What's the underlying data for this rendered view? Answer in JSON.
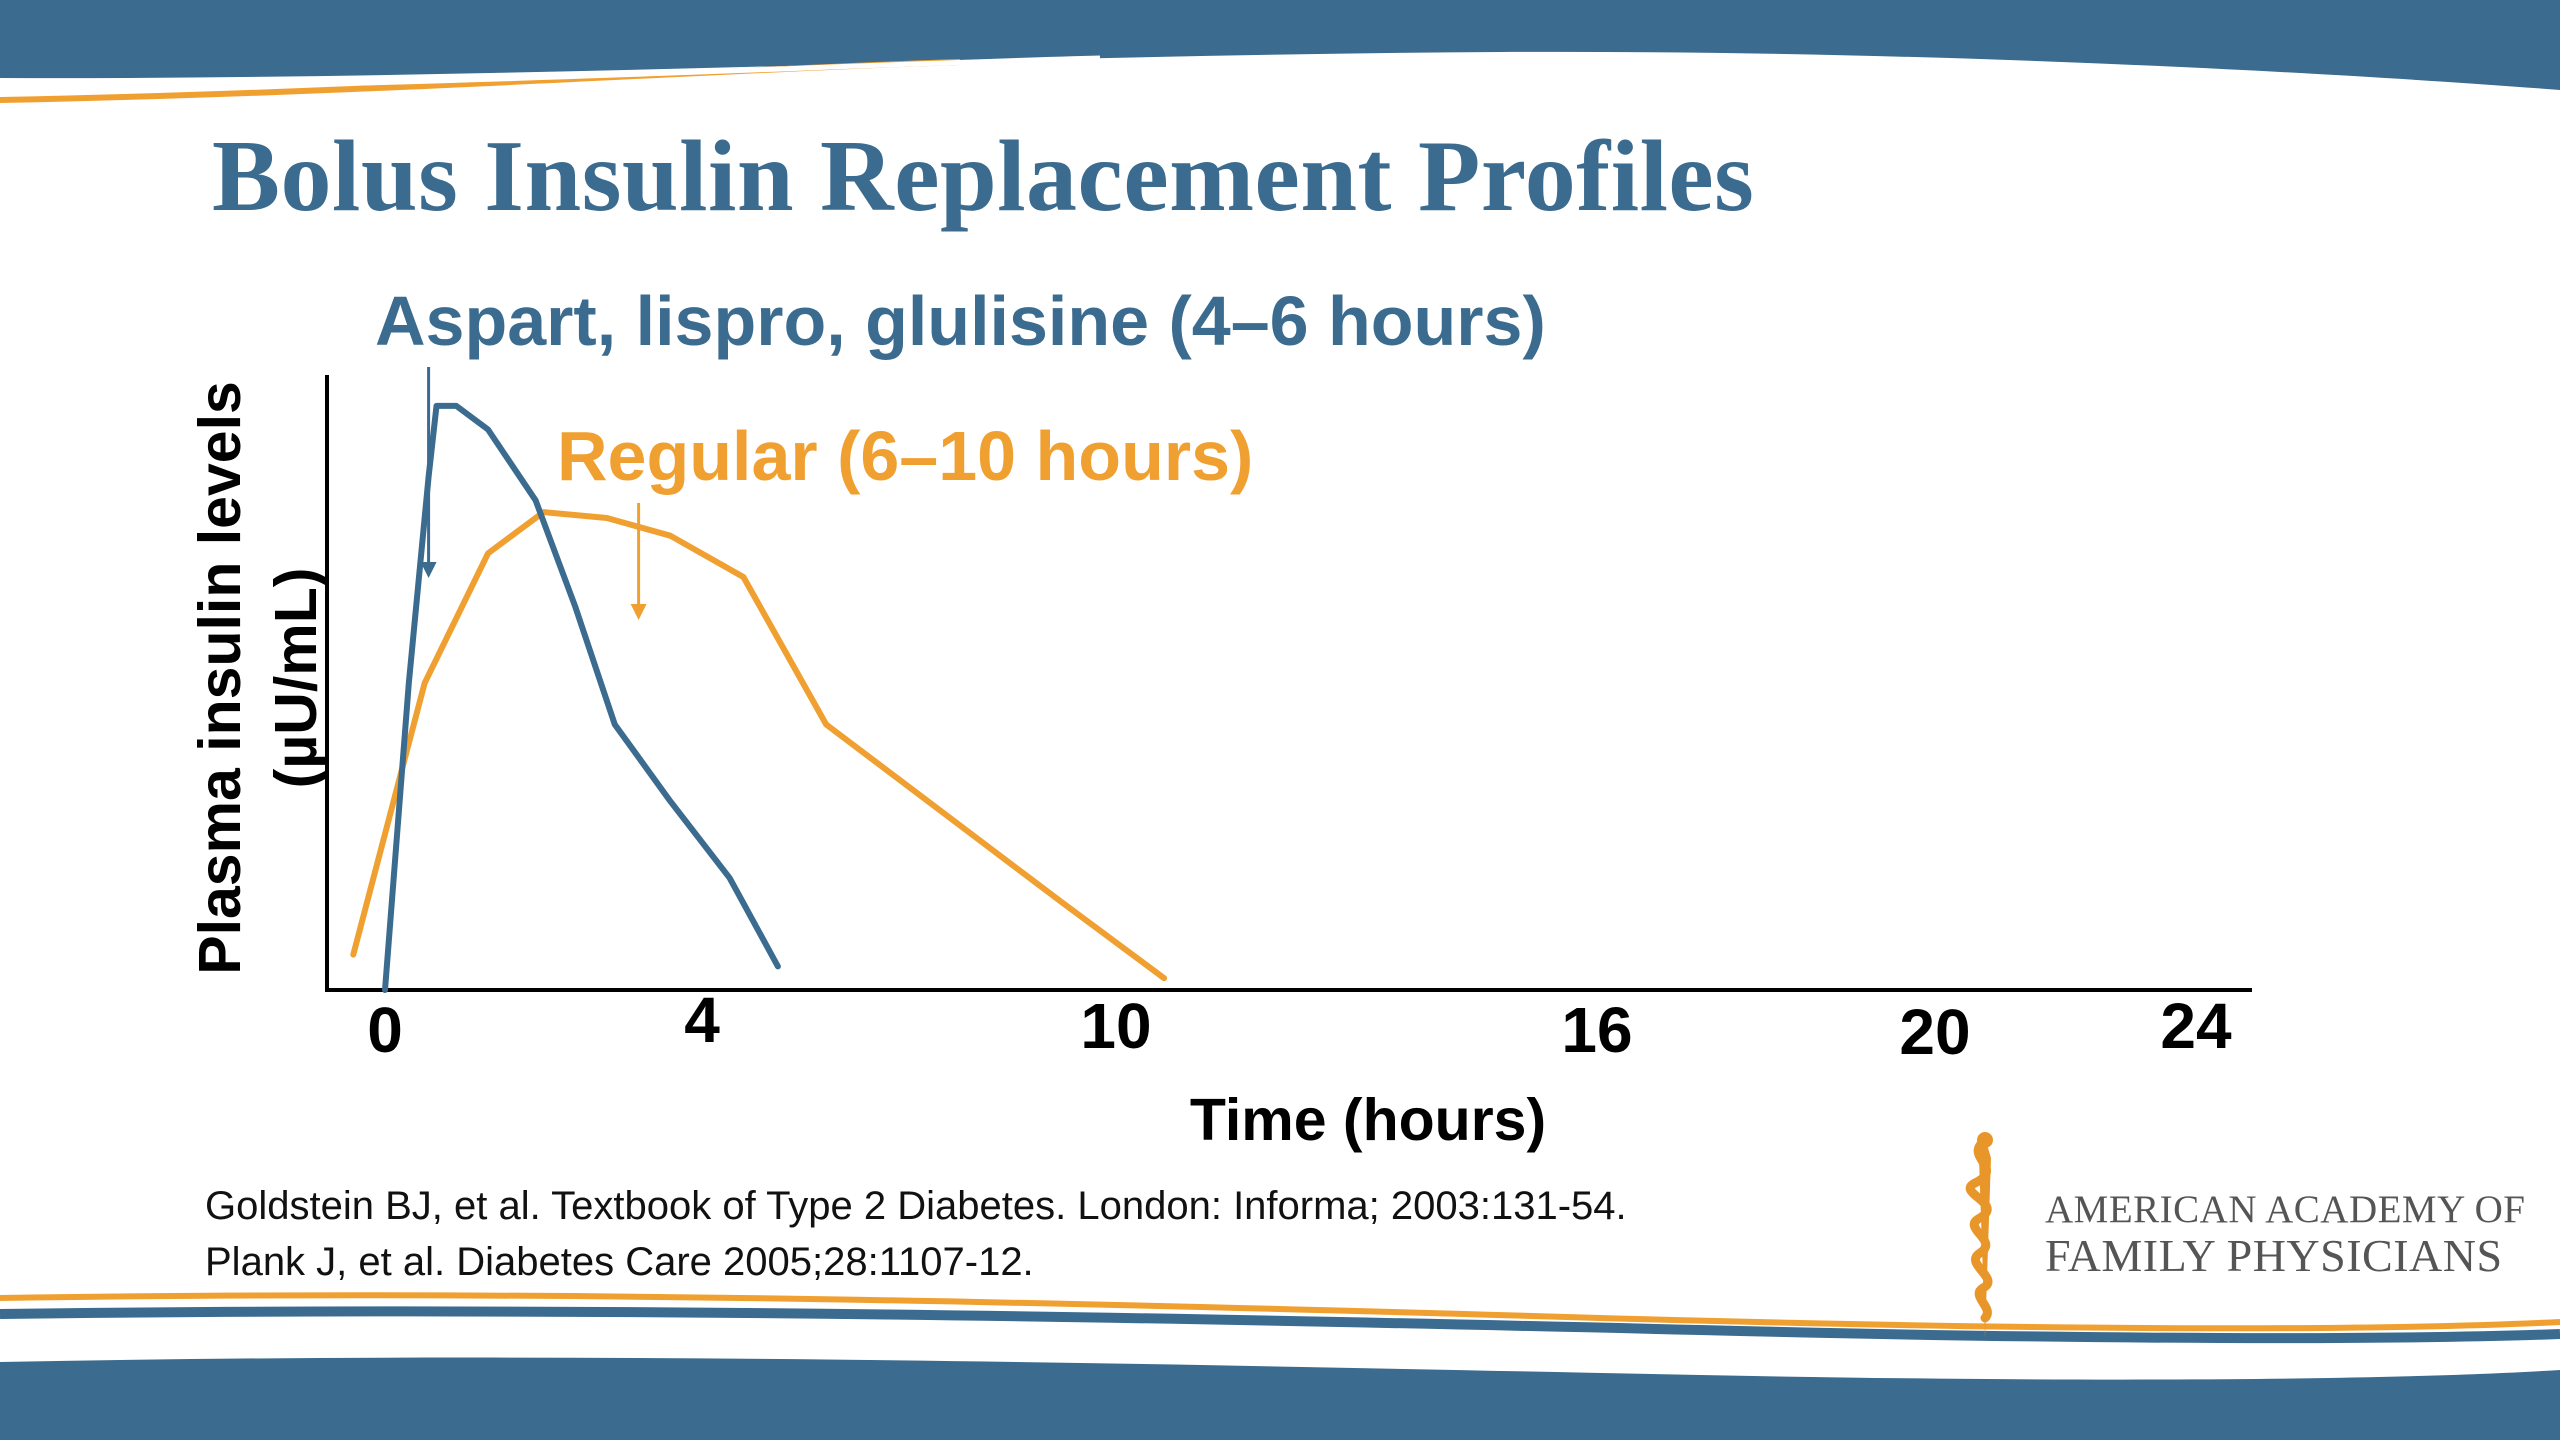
{
  "slide": {
    "title": "Bolus Insulin Replacement Profiles",
    "citations": [
      "Goldstein BJ, et al. Textbook of Type 2 Diabetes. London: Informa; 2003:131-54.",
      "Plank J, et al. Diabetes Care 2005;28:1107-12."
    ],
    "logo": {
      "line1": "AMERICAN ACADEMY OF",
      "line2": "FAMILY PHYSICIANS",
      "icon": "caduceus-icon"
    },
    "colors": {
      "band": "#3b6b8e",
      "accent": "#f0a030",
      "title": "#3b6b8e"
    }
  },
  "chart_data": {
    "type": "line",
    "title": "",
    "xlabel": "Time (hours)",
    "ylabel": "Plasma insulin levels",
    "ylabel_units": "(µU/mL)",
    "xlim": [
      0,
      24
    ],
    "ylim": [
      0,
      1
    ],
    "x_ticks": [
      0,
      4,
      10,
      16,
      20,
      24
    ],
    "grid": false,
    "series": [
      {
        "name": "Aspart, lispro, glulisine (4–6 hours)",
        "color": "#3b6b8e",
        "annotation_x": 0.55,
        "x": [
          0,
          0.3,
          0.55,
          0.65,
          0.9,
          1.3,
          1.9,
          2.4,
          2.9,
          3.6,
          4.4,
          5.1
        ],
        "y": [
          0,
          0.52,
          0.87,
          0.99,
          0.99,
          0.95,
          0.83,
          0.65,
          0.45,
          0.32,
          0.19,
          0.04
        ]
      },
      {
        "name": "Regular (6–10 hours)",
        "color": "#f0a030",
        "annotation_x": 3.2,
        "x": [
          -0.4,
          0.5,
          1.3,
          2.0,
          2.8,
          3.6,
          4.6,
          5.8,
          7.5,
          9.2,
          10.6
        ],
        "y": [
          0.06,
          0.52,
          0.74,
          0.81,
          0.8,
          0.77,
          0.7,
          0.45,
          0.3,
          0.15,
          0.02
        ]
      }
    ]
  }
}
